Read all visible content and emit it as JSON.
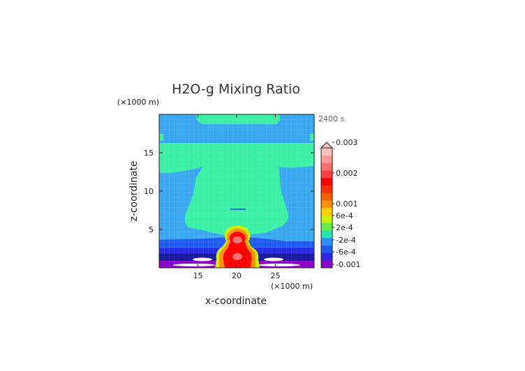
{
  "chart_data": {
    "type": "heatmap",
    "title": "H2O-g Mixing Ratio",
    "xlabel": "x-coordinate",
    "ylabel": "z-coordinate",
    "x_unit": "(×1000 m)",
    "y_unit": "(×1000 m)",
    "time_label": "2400 s",
    "xlim": [
      10,
      30
    ],
    "ylim": [
      0,
      20
    ],
    "x_ticks": [
      15,
      20,
      25
    ],
    "y_ticks": [
      5,
      10,
      15
    ],
    "x_tick_labels": [
      "15",
      "20",
      "25"
    ],
    "y_tick_labels": [
      "5",
      "10",
      "15"
    ],
    "colorbar": {
      "labels": [
        {
          "text": "0.003",
          "value": 0.003
        },
        {
          "text": "0.002",
          "value": 0.002
        },
        {
          "text": "0.001",
          "value": 0.001
        },
        {
          "text": "6e-4",
          "value": 0.0006
        },
        {
          "text": "2e-4",
          "value": 0.0002
        },
        {
          "text": "-2e-4",
          "value": -0.0002
        },
        {
          "text": "-6e-4",
          "value": -0.0006
        },
        {
          "text": "-0.001",
          "value": -0.001
        }
      ],
      "colors": [
        "#8a00c8",
        "#2a2ae6",
        "#1f5cf0",
        "#2f8fff",
        "#22e6b0",
        "#66ee44",
        "#c8f000",
        "#ffd000",
        "#ff9000",
        "#ff6000",
        "#ff3000",
        "#ff0000",
        "#ff4040",
        "#ff7070",
        "#ff9a9a",
        "#ffc0c0"
      ]
    },
    "features": [
      {
        "name": "background",
        "value": "-2e-4 to 2e-4 band (light blue)",
        "color": "#3aa8f0"
      },
      {
        "name": "upper anvil",
        "x_range": [
          12,
          28
        ],
        "z_range": [
          7,
          13
        ],
        "color": "#3ef0a6"
      },
      {
        "name": "core column",
        "x_center": 20,
        "z_range": [
          0.3,
          5
        ],
        "max_value": 0.003
      }
    ]
  }
}
